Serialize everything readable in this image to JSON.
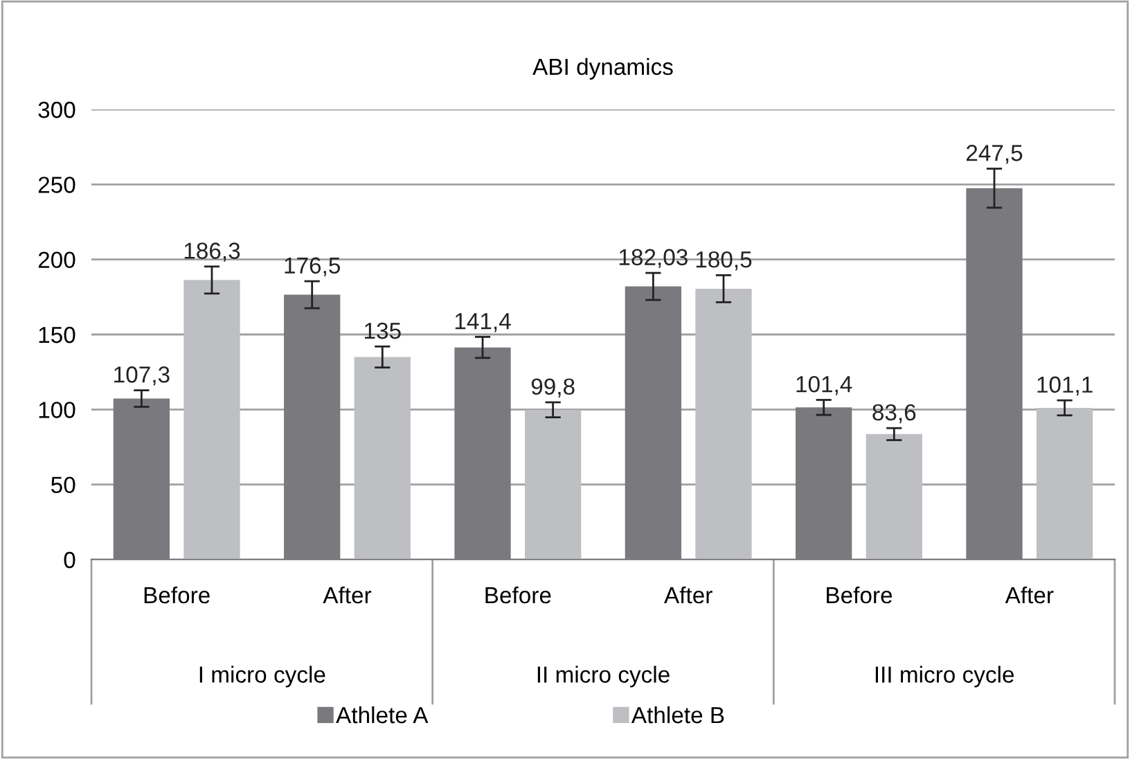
{
  "chart_data": {
    "type": "bar",
    "title": "ABI dynamics",
    "categories": [
      "Before",
      "After",
      "Before",
      "After",
      "Before",
      "After"
    ],
    "annotations": [
      "I micro cycle",
      "II micro cycle",
      "III micro cycle"
    ],
    "series": [
      {
        "name": "Athlete A",
        "color": "#7a7a7e",
        "values": [
          107.3,
          176.5,
          141.4,
          182.03,
          101.4,
          247.5
        ],
        "errors": [
          5.5,
          9,
          7,
          9,
          5,
          13
        ],
        "value_labels": [
          "107,3",
          "176,5",
          "141,4",
          "182,03",
          "101,4",
          "247,5"
        ]
      },
      {
        "name": "Athlete B",
        "color": "#bebfc3",
        "values": [
          186.3,
          135,
          99.8,
          180.5,
          83.6,
          101.1
        ],
        "errors": [
          9,
          7,
          5,
          9,
          4,
          5
        ],
        "value_labels": [
          "186,3",
          "135",
          "99,8",
          "180,5",
          "83,6",
          "101,1"
        ]
      }
    ],
    "ylim": [
      0,
      300
    ],
    "yticks": [
      0,
      50,
      100,
      150,
      200,
      250,
      300
    ],
    "grid": "y",
    "legend": "bottom"
  }
}
